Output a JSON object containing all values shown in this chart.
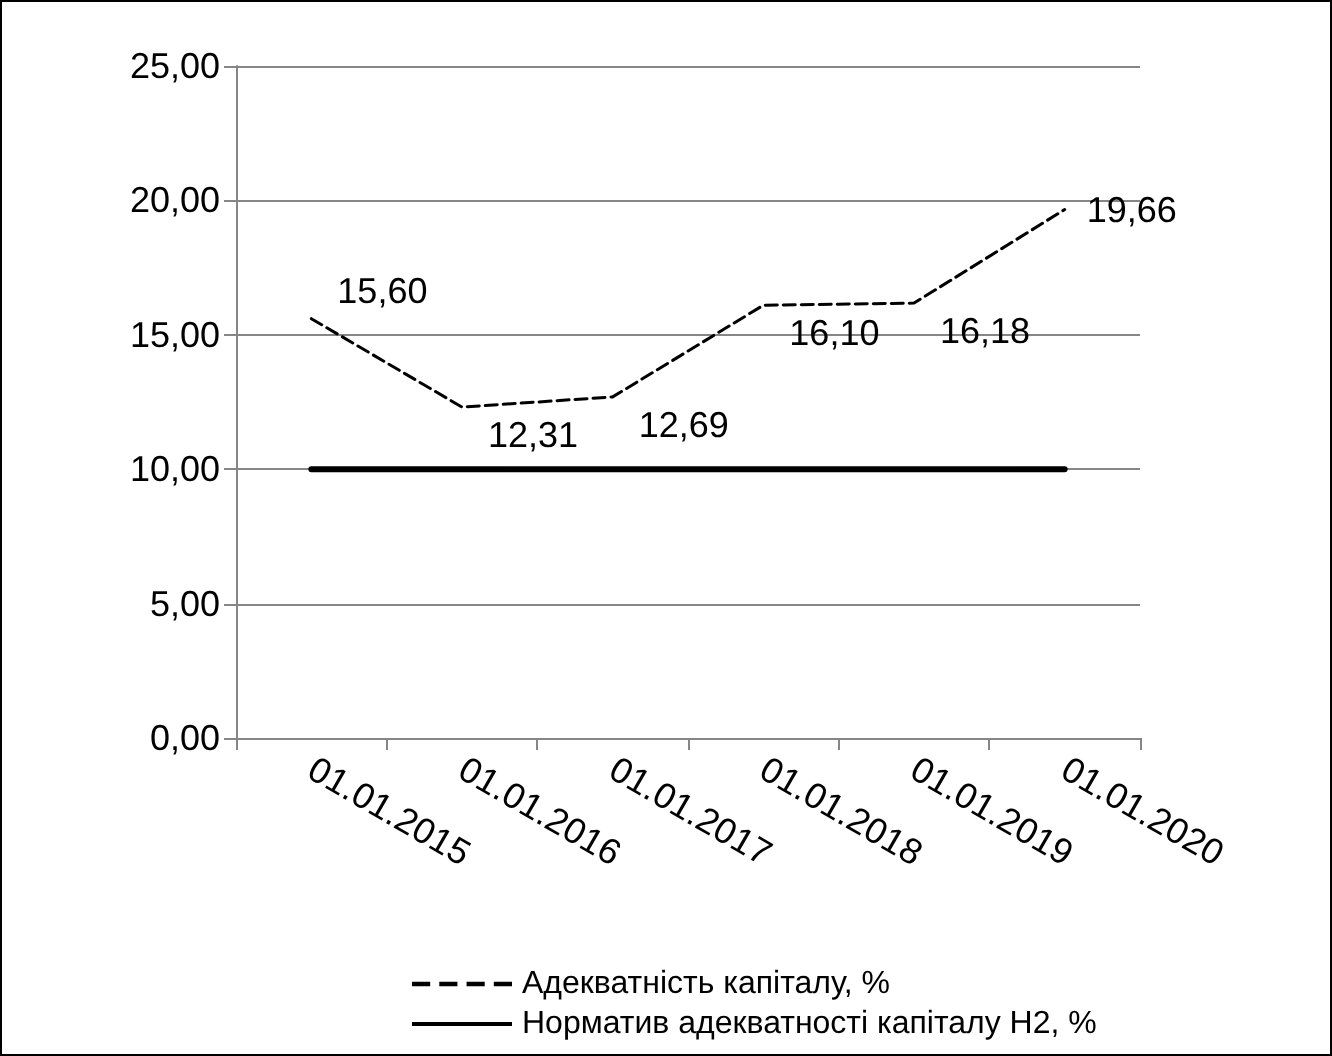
{
  "chart_data": {
    "type": "line",
    "categories": [
      "01.01.2015",
      "01.01.2016",
      "01.01.2017",
      "01.01.2018",
      "01.01.2019",
      "01.01.2020"
    ],
    "series": [
      {
        "name": "Адекватність капіталу, %",
        "color": "#000000",
        "line_style": "dashed",
        "values": [
          15.6,
          12.31,
          12.69,
          16.1,
          16.18,
          19.66
        ],
        "value_labels": [
          "15,60",
          "12,31",
          "12,69",
          "16,10",
          "16,18",
          "19,66"
        ]
      },
      {
        "name": "Норматив адекватності капіталу Н2, %",
        "color": "#000000",
        "line_style": "solid",
        "values": [
          10,
          10,
          10,
          10,
          10,
          10
        ]
      }
    ],
    "ylim": [
      0,
      25
    ],
    "yticks": [
      {
        "value": 0,
        "label": "0,00"
      },
      {
        "value": 5,
        "label": "5,00"
      },
      {
        "value": 10,
        "label": "10,00"
      },
      {
        "value": 15,
        "label": "15,00"
      },
      {
        "value": 20,
        "label": "20,00"
      },
      {
        "value": 25,
        "label": "25,00"
      }
    ],
    "grid": "y",
    "legend": "bottom",
    "marker": "none"
  }
}
